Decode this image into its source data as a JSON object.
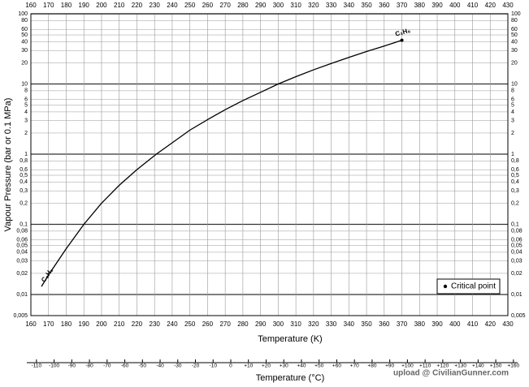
{
  "chart_data": {
    "type": "line",
    "y_label": "Vapour Pressure (bar or 0.1 MPa)",
    "x_label": "Temperature (K)",
    "x2_label": "Temperature (°C)",
    "log_y": true,
    "grid": true,
    "xlim": [
      160,
      430
    ],
    "xticks": [
      160,
      170,
      180,
      190,
      200,
      210,
      220,
      230,
      240,
      250,
      260,
      270,
      280,
      290,
      300,
      310,
      320,
      330,
      340,
      350,
      360,
      370,
      380,
      390,
      400,
      410,
      420,
      430
    ],
    "ylim": [
      0.005,
      100
    ],
    "yticks": [
      {
        "value": 0.005,
        "label": "0,005"
      },
      {
        "value": 0.01,
        "label": "0,01"
      },
      {
        "value": 0.02,
        "label": "0,02"
      },
      {
        "value": 0.03,
        "label": "0,03"
      },
      {
        "value": 0.04,
        "label": "0,04"
      },
      {
        "value": 0.05,
        "label": "0,05"
      },
      {
        "value": 0.06,
        "label": "0,06"
      },
      {
        "value": 0.08,
        "label": "0,08"
      },
      {
        "value": 0.1,
        "label": "0,1"
      },
      {
        "value": 0.2,
        "label": "0,2"
      },
      {
        "value": 0.3,
        "label": "0,3"
      },
      {
        "value": 0.4,
        "label": "0,4"
      },
      {
        "value": 0.5,
        "label": "0,5"
      },
      {
        "value": 0.6,
        "label": "0,6"
      },
      {
        "value": 0.8,
        "label": "0,8"
      },
      1,
      2,
      3,
      4,
      5,
      6,
      8,
      10,
      20,
      30,
      40,
      50,
      60,
      80,
      100
    ],
    "x2lim": [
      -113.15,
      156.85
    ],
    "x2ticks": [
      -110,
      -100,
      -90,
      -80,
      -70,
      -60,
      -50,
      -40,
      -30,
      -20,
      -10,
      0,
      {
        "value": 10,
        "label": "+10"
      },
      {
        "value": 20,
        "label": "+20"
      },
      {
        "value": 30,
        "label": "+30"
      },
      {
        "value": 40,
        "label": "+40"
      },
      {
        "value": 50,
        "label": "+50"
      },
      {
        "value": 60,
        "label": "+60"
      },
      {
        "value": 70,
        "label": "+70"
      },
      {
        "value": 80,
        "label": "+80"
      },
      {
        "value": 90,
        "label": "+90"
      },
      {
        "value": 100,
        "label": "+100"
      },
      {
        "value": 110,
        "label": "+110"
      },
      {
        "value": 120,
        "label": "+120"
      },
      {
        "value": 130,
        "label": "+130"
      },
      {
        "value": 140,
        "label": "+140"
      },
      {
        "value": 150,
        "label": "+150"
      },
      {
        "value": 160,
        "label": "+160"
      }
    ],
    "series": [
      {
        "name": "C₃H₈",
        "color": "#000000",
        "x": [
          166,
          170,
          180,
          190,
          200,
          210,
          220,
          231,
          240,
          250,
          260,
          270,
          280,
          290,
          300,
          310,
          320,
          330,
          340,
          350,
          360,
          370
        ],
        "values": [
          0.013,
          0.019,
          0.045,
          0.1,
          0.2,
          0.36,
          0.6,
          1.0,
          1.45,
          2.2,
          3.1,
          4.3,
          5.8,
          7.6,
          10,
          12.7,
          15.9,
          19.6,
          23.9,
          29,
          34.7,
          42
        ]
      }
    ],
    "critical_point": {
      "x": 370,
      "y": 42,
      "label": "Critical point"
    },
    "legend": "lower right",
    "watermark": "upload @ CivilianGunner.com"
  }
}
